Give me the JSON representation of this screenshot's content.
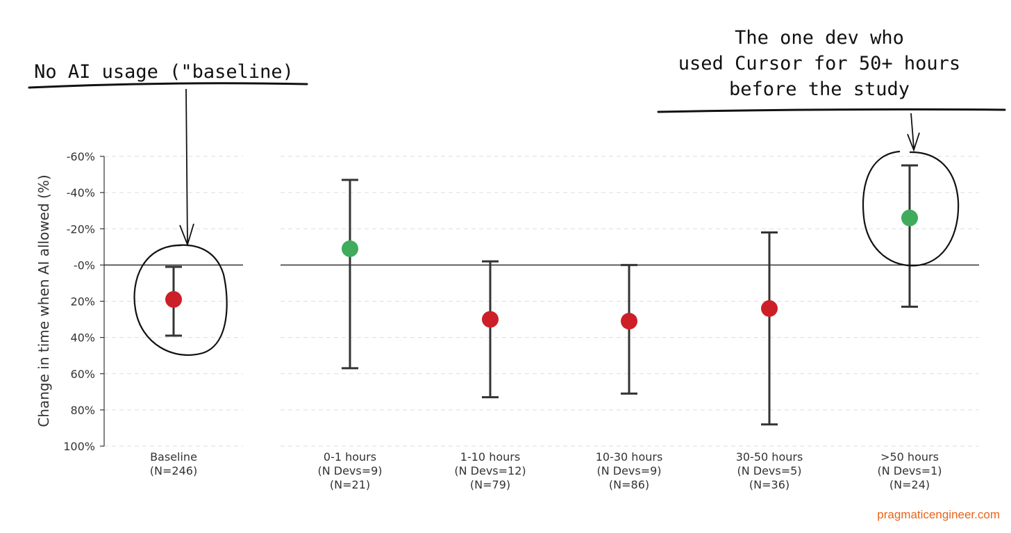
{
  "chart_data": {
    "type": "scatter",
    "ylabel": "Change in time when AI allowed (%)",
    "y_ticks": [
      "-60%",
      "-40%",
      "-20%",
      "-0%",
      "20%",
      "40%",
      "60%",
      "80%",
      "100%"
    ],
    "ylim": [
      -60,
      100
    ],
    "y_axis_inverted": true,
    "grid": true,
    "categories": [
      {
        "label": [
          "Baseline",
          "(N=246)"
        ],
        "group": "baseline",
        "estimate": 19,
        "ci": [
          1,
          39
        ],
        "color": "#cc1f28"
      },
      {
        "label": [
          "0-1 hours",
          "(N Devs=9)",
          "(N=21)"
        ],
        "group": "usage",
        "estimate": -9,
        "ci": [
          -47,
          57
        ],
        "color": "#3fab5c"
      },
      {
        "label": [
          "1-10 hours",
          "(N Devs=12)",
          "(N=79)"
        ],
        "group": "usage",
        "estimate": 30,
        "ci": [
          -2,
          73
        ],
        "color": "#cc1f28"
      },
      {
        "label": [
          "10-30 hours",
          "(N Devs=9)",
          "(N=86)"
        ],
        "group": "usage",
        "estimate": 31,
        "ci": [
          0,
          71
        ],
        "color": "#cc1f28"
      },
      {
        "label": [
          "30-50 hours",
          "(N Devs=5)",
          "(N=36)"
        ],
        "group": "usage",
        "estimate": 24,
        "ci": [
          -18,
          88
        ],
        "color": "#cc1f28"
      },
      {
        "label": [
          ">50 hours",
          "(N Devs=1)",
          "(N=24)"
        ],
        "group": "usage",
        "estimate": -26,
        "ci": [
          -55,
          23
        ],
        "color": "#3fab5c"
      }
    ],
    "annotations": [
      {
        "lines": [
          "No AI usage (\"baseline)"
        ],
        "target": "Baseline"
      },
      {
        "lines": [
          "The one dev who",
          "used Cursor for 50+ hours",
          "before the study"
        ],
        "target": ">50 hours"
      }
    ]
  },
  "credit": {
    "text": "pragmaticengineer.com",
    "color": "#e8641b"
  },
  "colors": {
    "slower": "#cc1f28",
    "faster": "#3fab5c",
    "errorbar": "#333333"
  }
}
